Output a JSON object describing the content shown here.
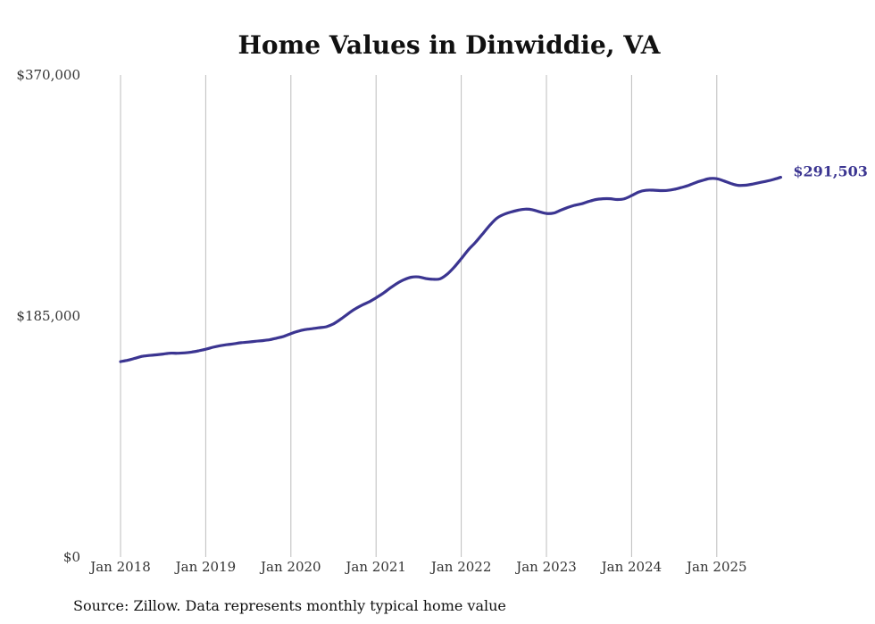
{
  "source_note": "Source: Zillow. Data represents monthly typical home value",
  "colors": {
    "series": "#3b3591",
    "grid": "#bdbdbd",
    "text": "#333333"
  },
  "chart_data": {
    "type": "line",
    "title": "Home Values in Dinwiddie, VA",
    "xlabel": "",
    "ylabel": "",
    "ylim": [
      0,
      370000
    ],
    "y_ticks": [
      {
        "value": 0,
        "label": "$0"
      },
      {
        "value": 185000,
        "label": "$185,000"
      },
      {
        "value": 370000,
        "label": "$370,000"
      }
    ],
    "x_ticks": [
      {
        "date": "2018-01",
        "label": "Jan 2018"
      },
      {
        "date": "2019-01",
        "label": "Jan 2019"
      },
      {
        "date": "2020-01",
        "label": "Jan 2020"
      },
      {
        "date": "2021-01",
        "label": "Jan 2021"
      },
      {
        "date": "2022-01",
        "label": "Jan 2022"
      },
      {
        "date": "2023-01",
        "label": "Jan 2023"
      },
      {
        "date": "2024-01",
        "label": "Jan 2024"
      },
      {
        "date": "2025-01",
        "label": "Jan 2025"
      }
    ],
    "x_range": [
      "2018-01",
      "2025-10"
    ],
    "vertical_grid": true,
    "end_label": "$291,503",
    "series": [
      {
        "points": [
          [
            "2018-01",
            150000
          ],
          [
            "2018-02",
            151000
          ],
          [
            "2018-03",
            152500
          ],
          [
            "2018-04",
            154000
          ],
          [
            "2018-05",
            154700
          ],
          [
            "2018-06",
            155200
          ],
          [
            "2018-07",
            155800
          ],
          [
            "2018-08",
            156500
          ],
          [
            "2018-09",
            156400
          ],
          [
            "2018-10",
            156700
          ],
          [
            "2018-11",
            157300
          ],
          [
            "2018-12",
            158300
          ],
          [
            "2019-01",
            159500
          ],
          [
            "2019-02",
            161000
          ],
          [
            "2019-03",
            162200
          ],
          [
            "2019-04",
            163000
          ],
          [
            "2019-05",
            163700
          ],
          [
            "2019-06",
            164500
          ],
          [
            "2019-07",
            165000
          ],
          [
            "2019-08",
            165600
          ],
          [
            "2019-09",
            166100
          ],
          [
            "2019-10",
            166800
          ],
          [
            "2019-11",
            168000
          ],
          [
            "2019-12",
            169400
          ],
          [
            "2020-01",
            171500
          ],
          [
            "2020-02",
            173300
          ],
          [
            "2020-03",
            174600
          ],
          [
            "2020-04",
            175300
          ],
          [
            "2020-05",
            176000
          ],
          [
            "2020-06",
            176800
          ],
          [
            "2020-07",
            179000
          ],
          [
            "2020-08",
            182500
          ],
          [
            "2020-09",
            186500
          ],
          [
            "2020-10",
            190300
          ],
          [
            "2020-11",
            193300
          ],
          [
            "2020-12",
            195800
          ],
          [
            "2021-01",
            199000
          ],
          [
            "2021-02",
            202500
          ],
          [
            "2021-03",
            206500
          ],
          [
            "2021-04",
            210200
          ],
          [
            "2021-05",
            213000
          ],
          [
            "2021-06",
            214800
          ],
          [
            "2021-07",
            215000
          ],
          [
            "2021-08",
            213800
          ],
          [
            "2021-09",
            213200
          ],
          [
            "2021-10",
            213500
          ],
          [
            "2021-11",
            217000
          ],
          [
            "2021-12",
            222500
          ],
          [
            "2022-01",
            229000
          ],
          [
            "2022-02",
            235800
          ],
          [
            "2022-03",
            241500
          ],
          [
            "2022-04",
            248000
          ],
          [
            "2022-05",
            254500
          ],
          [
            "2022-06",
            260000
          ],
          [
            "2022-07",
            263000
          ],
          [
            "2022-08",
            264800
          ],
          [
            "2022-09",
            266200
          ],
          [
            "2022-10",
            267000
          ],
          [
            "2022-11",
            266600
          ],
          [
            "2022-12",
            265000
          ],
          [
            "2023-01",
            263700
          ],
          [
            "2023-02",
            264000
          ],
          [
            "2023-03",
            266200
          ],
          [
            "2023-04",
            268300
          ],
          [
            "2023-05",
            270000
          ],
          [
            "2023-06",
            271200
          ],
          [
            "2023-07",
            273000
          ],
          [
            "2023-08",
            274400
          ],
          [
            "2023-09",
            275000
          ],
          [
            "2023-10",
            275000
          ],
          [
            "2023-11",
            274400
          ],
          [
            "2023-12",
            275000
          ],
          [
            "2024-01",
            277400
          ],
          [
            "2024-02",
            280200
          ],
          [
            "2024-03",
            281500
          ],
          [
            "2024-04",
            281600
          ],
          [
            "2024-05",
            281300
          ],
          [
            "2024-06",
            281400
          ],
          [
            "2024-07",
            282200
          ],
          [
            "2024-08",
            283600
          ],
          [
            "2024-09",
            285200
          ],
          [
            "2024-10",
            287400
          ],
          [
            "2024-11",
            289100
          ],
          [
            "2024-12",
            290500
          ],
          [
            "2025-01",
            290400
          ],
          [
            "2025-02",
            288700
          ],
          [
            "2025-03",
            286700
          ],
          [
            "2025-04",
            285300
          ],
          [
            "2025-05",
            285400
          ],
          [
            "2025-06",
            286200
          ],
          [
            "2025-07",
            287400
          ],
          [
            "2025-08",
            288500
          ],
          [
            "2025-09",
            289800
          ],
          [
            "2025-10",
            291503
          ]
        ]
      }
    ]
  }
}
